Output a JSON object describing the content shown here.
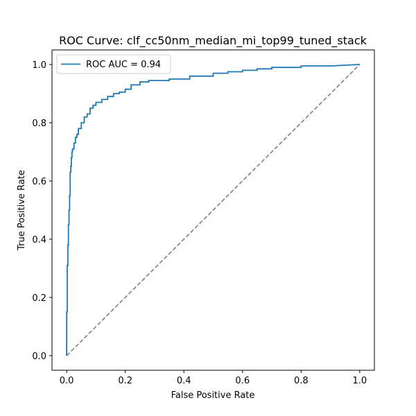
{
  "chart_data": {
    "type": "line",
    "title": "ROC Curve: clf_cc50nm_median_mi_top99_tuned_stack",
    "xlabel": "False Positive Rate",
    "ylabel": "True Positive Rate",
    "xlim": [
      -0.05,
      1.05
    ],
    "ylim": [
      -0.05,
      1.05
    ],
    "xticks": [
      "0.0",
      "0.2",
      "0.4",
      "0.6",
      "0.8",
      "1.0"
    ],
    "yticks": [
      "0.0",
      "0.2",
      "0.4",
      "0.6",
      "0.8",
      "1.0"
    ],
    "grid": false,
    "legend_position": "top-left",
    "series": [
      {
        "name": "ROC AUC = 0.94",
        "color": "#1f77b4",
        "style": "solid",
        "x": [
          0.0,
          0.0,
          0.002,
          0.002,
          0.004,
          0.004,
          0.006,
          0.006,
          0.008,
          0.008,
          0.01,
          0.01,
          0.012,
          0.012,
          0.014,
          0.014,
          0.016,
          0.016,
          0.018,
          0.018,
          0.02,
          0.02,
          0.025,
          0.025,
          0.03,
          0.03,
          0.035,
          0.035,
          0.04,
          0.04,
          0.05,
          0.05,
          0.06,
          0.06,
          0.07,
          0.07,
          0.08,
          0.08,
          0.09,
          0.09,
          0.1,
          0.1,
          0.12,
          0.12,
          0.14,
          0.14,
          0.16,
          0.16,
          0.18,
          0.18,
          0.2,
          0.2,
          0.22,
          0.22,
          0.25,
          0.25,
          0.28,
          0.28,
          0.35,
          0.35,
          0.42,
          0.42,
          0.5,
          0.5,
          0.55,
          0.55,
          0.6,
          0.6,
          0.65,
          0.65,
          0.7,
          0.7,
          0.8,
          0.8,
          0.9,
          1.0
        ],
        "y": [
          0.0,
          0.15,
          0.15,
          0.31,
          0.31,
          0.38,
          0.38,
          0.45,
          0.45,
          0.5,
          0.5,
          0.55,
          0.55,
          0.63,
          0.63,
          0.65,
          0.65,
          0.68,
          0.68,
          0.7,
          0.7,
          0.71,
          0.71,
          0.73,
          0.73,
          0.75,
          0.75,
          0.76,
          0.76,
          0.78,
          0.78,
          0.8,
          0.8,
          0.82,
          0.82,
          0.83,
          0.83,
          0.85,
          0.85,
          0.86,
          0.86,
          0.87,
          0.87,
          0.88,
          0.88,
          0.89,
          0.89,
          0.9,
          0.9,
          0.905,
          0.905,
          0.915,
          0.915,
          0.93,
          0.93,
          0.94,
          0.94,
          0.945,
          0.945,
          0.95,
          0.95,
          0.96,
          0.96,
          0.97,
          0.97,
          0.975,
          0.975,
          0.98,
          0.98,
          0.985,
          0.985,
          0.99,
          0.99,
          0.995,
          0.995,
          1.0
        ]
      },
      {
        "name": "",
        "color": "#808080",
        "style": "dashed",
        "x": [
          0.0,
          1.0
        ],
        "y": [
          0.0,
          1.0
        ]
      }
    ]
  }
}
